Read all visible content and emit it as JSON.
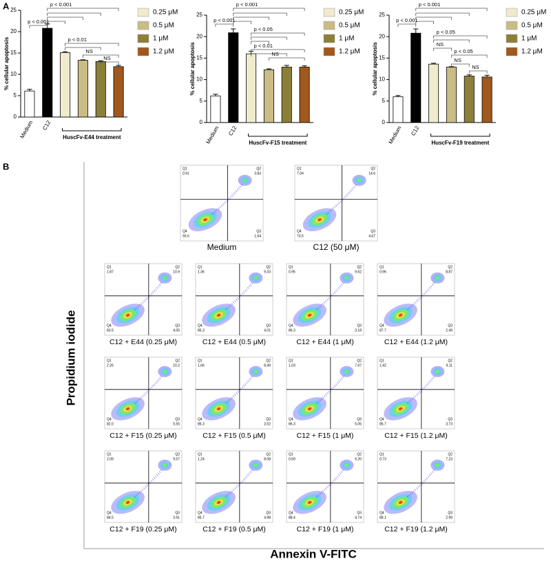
{
  "panel_labels": [
    "A",
    "B"
  ],
  "chart_data": [
    {
      "type": "bar",
      "ylabel": "% cellular apoptosis",
      "categories": [
        "Medium",
        "C12",
        null,
        null,
        null,
        null
      ],
      "values": [
        6.1,
        20.8,
        15.1,
        13.3,
        13.0,
        11.8
      ],
      "errors": [
        0.4,
        1.0,
        0.2,
        0.1,
        0.2,
        0.3
      ],
      "colors": [
        "#ffffff",
        "#000000",
        "#efebcd",
        "#c9bc84",
        "#8c7f3a",
        "#a0581e"
      ],
      "legend": [
        "0.25 μM",
        "0.5 μM",
        "1 μM",
        "1.2 μM"
      ],
      "group_label": "HuscFv-E44 treatment",
      "ylim": [
        0,
        25
      ],
      "yticks": [
        0,
        5,
        10,
        15,
        20,
        25
      ],
      "annotations": [
        "p < 0.001",
        "p < 0.001",
        "p < 0.01",
        "NS",
        "NS"
      ]
    },
    {
      "type": "bar",
      "ylabel": "% cellular apoptosis",
      "categories": [
        "Medium",
        "C12",
        null,
        null,
        null,
        null
      ],
      "values": [
        6.2,
        20.9,
        16.0,
        12.3,
        12.9,
        12.9
      ],
      "errors": [
        0.4,
        0.9,
        0.6,
        0.2,
        0.4,
        0.3
      ],
      "colors": [
        "#ffffff",
        "#000000",
        "#efebcd",
        "#c9bc84",
        "#8c7f3a",
        "#a0581e"
      ],
      "legend": [
        "0.25 μM",
        "0.5 μM",
        "1 μM",
        "1.2 μM"
      ],
      "group_label": "HuscFv-F15 treatment",
      "ylim": [
        0,
        25
      ],
      "yticks": [
        0,
        5,
        10,
        15,
        20,
        25
      ],
      "annotations": [
        "p < 0.001",
        "p < 0.001",
        "p < 0.05",
        "p < 0.01",
        "NS"
      ]
    },
    {
      "type": "bar",
      "ylabel": "% cellular apoptosis",
      "categories": [
        "Medium",
        "C12",
        null,
        null,
        null,
        null
      ],
      "values": [
        6.0,
        20.8,
        13.6,
        12.9,
        10.8,
        10.6
      ],
      "errors": [
        0.3,
        1.0,
        0.2,
        0.1,
        0.3,
        0.4
      ],
      "colors": [
        "#ffffff",
        "#000000",
        "#efebcd",
        "#c9bc84",
        "#8c7f3a",
        "#a0581e"
      ],
      "legend": [
        "0.25 μM",
        "0.5 μM",
        "1 μM",
        "1.2 μM"
      ],
      "group_label": "HuscFv-F19 treatment",
      "ylim": [
        0,
        25
      ],
      "yticks": [
        0,
        5,
        10,
        15,
        20,
        25
      ],
      "annotations": [
        "p < 0.001",
        "p < 0.001",
        "p < 0.05",
        "NS",
        "p < 0.05",
        "NS",
        "NS"
      ]
    }
  ],
  "flow": {
    "ylabel": "Propidium iodide",
    "xlabel": "Annexin V-FITC",
    "quadrant_names": [
      "Q1",
      "Q2",
      "Q3",
      "Q4"
    ],
    "plots": [
      {
        "title": "Medium",
        "q": [
          "0.91",
          "3.83",
          "1.64",
          "93.6"
        ]
      },
      {
        "title": "C12 (50 μM)",
        "q": [
          "7.04",
          "14.6",
          "4.67",
          "73.5"
        ]
      },
      {
        "title": "C12 + E44 (0.25 μM)",
        "q": [
          "1.87",
          "10.9",
          "4.05",
          "83.5"
        ]
      },
      {
        "title": "C12 + E44 (0.5 μM)",
        "q": [
          "1.36",
          "9.33",
          "4.01",
          "85.3"
        ]
      },
      {
        "title": "C12 + E44 (1 μM)",
        "q": [
          "0.95",
          "9.62",
          "3.18",
          "86.3"
        ]
      },
      {
        "title": "C12 + E44 (1.2 μM)",
        "q": [
          "0.96",
          "8.87",
          "2.49",
          "87.7"
        ]
      },
      {
        "title": "C12 + F15 (0.25 μM)",
        "q": [
          "2.26",
          "10.2",
          "5.55",
          "82.0"
        ]
      },
      {
        "title": "C12 + F15 (0.5 μM)",
        "q": [
          "1.66",
          "8.49",
          "3.52",
          "86.3"
        ]
      },
      {
        "title": "C12 + F15 (1 μM)",
        "q": [
          "1.03",
          "7.67",
          "5.05",
          "86.3"
        ]
      },
      {
        "title": "C12 + F15 (1.2 μM)",
        "q": [
          "1.42",
          "9.11",
          "3.73",
          "85.7"
        ]
      },
      {
        "title": "C12 + F19 (0.25 μM)",
        "q": [
          "2.09",
          "9.57",
          "3.91",
          "84.5"
        ]
      },
      {
        "title": "C12 + F19 (0.5 μM)",
        "q": [
          "1.24",
          "8.08",
          "4.98",
          "85.7"
        ]
      },
      {
        "title": "C12 + F19 (1 μM)",
        "q": [
          "0.69",
          "6.20",
          "4.74",
          "88.4"
        ]
      },
      {
        "title": "C12 + F19 (1.2 μM)",
        "q": [
          "0.73",
          "7.23",
          "2.99",
          "89.1"
        ]
      }
    ]
  }
}
